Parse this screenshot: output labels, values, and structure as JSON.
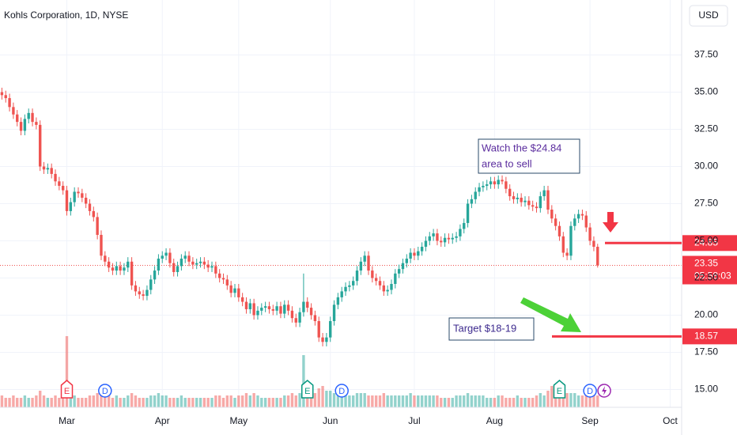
{
  "chart_data": {
    "type": "candlestick",
    "title": "Kohls Corporation, 1D, NYSE",
    "currency": "USD",
    "up_color": "#26a69a",
    "down_color": "#ef5350",
    "level_color": "#f23645",
    "grid": true,
    "open": [
      35.0,
      34.8,
      34.6,
      34.0,
      33.5,
      33.0,
      32.4,
      33.2,
      33.6,
      33.0,
      32.8,
      30.0,
      29.8,
      29.9,
      29.5,
      29.0,
      28.7,
      28.4,
      27.0,
      27.6,
      28.3,
      28.2,
      27.9,
      27.5,
      27.0,
      26.6,
      25.4,
      24.0,
      23.6,
      23.2,
      23.0,
      23.3,
      23.0,
      23.2,
      23.6,
      22.0,
      21.6,
      21.4,
      21.3,
      21.7,
      22.4,
      23.0,
      23.8,
      24.0,
      24.2,
      23.5,
      22.9,
      23.3,
      23.8,
      24.0,
      23.6,
      23.4,
      23.5,
      23.6,
      23.4,
      23.2,
      23.3,
      22.8,
      22.5,
      22.4,
      22.0,
      21.5,
      21.8,
      21.2,
      20.9,
      20.4,
      20.8,
      20.0,
      20.3,
      20.5,
      20.6,
      20.4,
      20.3,
      20.6,
      20.1,
      20.7,
      20.3,
      19.8,
      19.5,
      20.2,
      20.9,
      20.5,
      20.0,
      19.6,
      18.5,
      18.2,
      18.5,
      19.6,
      20.7,
      21.2,
      21.6,
      21.9,
      22.0,
      22.3,
      23.0,
      23.6,
      24.0,
      23.0,
      22.5,
      22.3,
      22.0,
      21.6,
      21.7,
      22.1,
      22.8,
      23.1,
      23.5,
      23.8,
      24.2,
      24.0,
      24.3,
      24.6,
      25.0,
      25.3,
      25.5,
      25.0,
      24.9,
      25.2,
      25.1,
      25.2,
      25.3,
      25.8,
      26.2,
      27.5,
      27.8,
      28.3,
      28.6,
      28.7,
      28.8,
      29.0,
      28.8,
      29.1,
      29.0,
      28.5,
      28.0,
      27.8,
      27.9,
      27.6,
      27.7,
      27.4,
      27.3,
      27.2,
      28.0,
      28.4,
      27.1,
      26.5,
      26.0,
      25.3,
      24.2,
      24.0,
      26.0,
      26.5,
      26.8,
      26.7,
      25.9,
      25.0,
      24.6
    ],
    "high": [
      35.3,
      35.1,
      34.9,
      34.3,
      33.8,
      33.3,
      33.5,
      33.9,
      33.9,
      33.3,
      33.1,
      30.3,
      30.2,
      30.2,
      29.8,
      29.3,
      29.0,
      28.7,
      27.9,
      28.6,
      28.6,
      28.5,
      28.2,
      27.8,
      27.3,
      26.9,
      25.7,
      24.3,
      23.9,
      23.5,
      23.6,
      23.6,
      23.5,
      23.9,
      23.9,
      22.3,
      21.9,
      21.7,
      22.0,
      22.7,
      23.3,
      24.1,
      24.3,
      24.5,
      24.5,
      23.8,
      23.6,
      24.1,
      24.3,
      24.3,
      23.9,
      23.8,
      23.9,
      23.9,
      23.7,
      23.6,
      23.6,
      23.1,
      22.8,
      22.7,
      22.3,
      22.1,
      22.1,
      21.5,
      21.2,
      21.1,
      21.1,
      20.6,
      20.8,
      20.9,
      20.9,
      20.7,
      20.9,
      20.9,
      21.0,
      21.0,
      20.6,
      20.1,
      20.5,
      22.8,
      21.2,
      20.8,
      20.3,
      19.9,
      18.8,
      18.8,
      19.9,
      21.0,
      21.5,
      21.9,
      22.2,
      22.3,
      22.6,
      23.3,
      23.9,
      24.3,
      24.3,
      23.3,
      22.8,
      22.6,
      22.3,
      22.0,
      22.4,
      23.1,
      23.4,
      23.8,
      24.1,
      24.5,
      24.5,
      24.6,
      24.9,
      25.3,
      25.6,
      25.8,
      25.8,
      25.3,
      25.5,
      25.5,
      25.5,
      25.6,
      26.1,
      26.5,
      27.8,
      28.1,
      28.6,
      28.9,
      29.0,
      29.1,
      29.3,
      29.3,
      29.4,
      29.4,
      29.3,
      28.8,
      28.3,
      28.2,
      28.2,
      28.0,
      28.0,
      27.7,
      27.6,
      28.3,
      28.7,
      28.7,
      27.4,
      26.8,
      26.3,
      25.6,
      24.5,
      26.3,
      26.8,
      27.1,
      27.1,
      27.0,
      26.2,
      25.3,
      24.8
    ],
    "low": [
      34.5,
      34.3,
      33.7,
      33.2,
      32.7,
      32.1,
      32.1,
      32.9,
      32.7,
      32.5,
      29.7,
      29.5,
      29.5,
      29.2,
      28.7,
      28.4,
      28.1,
      26.7,
      26.7,
      27.3,
      27.9,
      27.6,
      27.2,
      26.7,
      26.3,
      25.1,
      23.7,
      23.3,
      22.9,
      22.7,
      22.7,
      22.7,
      22.7,
      22.9,
      21.7,
      21.3,
      21.1,
      21.0,
      21.0,
      21.4,
      22.1,
      22.7,
      23.5,
      23.7,
      23.2,
      22.6,
      22.6,
      23.0,
      23.5,
      23.3,
      23.1,
      23.1,
      23.2,
      23.1,
      22.9,
      22.9,
      22.5,
      22.2,
      22.1,
      21.7,
      21.2,
      21.2,
      20.9,
      20.6,
      20.1,
      20.1,
      19.7,
      19.7,
      20.0,
      20.2,
      20.1,
      20.0,
      20.0,
      19.8,
      19.8,
      20.0,
      19.5,
      19.2,
      19.2,
      19.9,
      20.2,
      19.7,
      19.3,
      18.2,
      17.9,
      17.9,
      18.2,
      19.3,
      20.4,
      20.9,
      21.3,
      21.6,
      21.7,
      22.0,
      22.7,
      23.3,
      22.7,
      22.2,
      22.0,
      21.7,
      21.3,
      21.3,
      21.4,
      21.8,
      22.5,
      22.8,
      23.2,
      23.5,
      23.7,
      23.7,
      24.0,
      24.3,
      24.7,
      25.0,
      24.7,
      24.6,
      24.6,
      24.8,
      24.8,
      24.9,
      25.0,
      25.5,
      25.9,
      27.2,
      27.5,
      28.0,
      28.3,
      28.4,
      28.5,
      28.5,
      28.5,
      28.8,
      28.2,
      27.7,
      27.5,
      27.5,
      27.3,
      27.3,
      27.1,
      27.0,
      26.9,
      26.9,
      27.7,
      26.8,
      26.2,
      25.7,
      25.0,
      23.9,
      23.7,
      23.7,
      25.7,
      26.2,
      26.4,
      25.6,
      24.7,
      24.3,
      23.2
    ],
    "close": [
      34.8,
      34.6,
      34.0,
      33.5,
      33.0,
      32.4,
      33.2,
      33.6,
      33.0,
      32.8,
      30.0,
      29.8,
      29.9,
      29.5,
      29.0,
      28.7,
      28.4,
      27.0,
      27.6,
      28.3,
      28.2,
      27.9,
      27.5,
      27.0,
      26.6,
      25.4,
      24.0,
      23.6,
      23.2,
      23.0,
      23.3,
      23.0,
      23.2,
      23.6,
      22.0,
      21.6,
      21.4,
      21.3,
      21.7,
      22.4,
      23.0,
      23.8,
      24.0,
      24.2,
      23.5,
      22.9,
      23.3,
      23.8,
      24.0,
      23.6,
      23.4,
      23.5,
      23.6,
      23.4,
      23.2,
      23.3,
      22.8,
      22.5,
      22.4,
      22.0,
      21.5,
      21.8,
      21.2,
      20.9,
      20.4,
      20.8,
      20.0,
      20.3,
      20.5,
      20.6,
      20.4,
      20.3,
      20.6,
      20.1,
      20.7,
      20.3,
      19.8,
      19.5,
      20.2,
      20.9,
      20.5,
      20.0,
      19.6,
      18.5,
      18.2,
      18.5,
      19.6,
      20.7,
      21.2,
      21.6,
      21.9,
      22.0,
      22.3,
      23.0,
      23.6,
      24.0,
      23.0,
      22.5,
      22.3,
      22.0,
      21.6,
      21.7,
      22.1,
      22.8,
      23.1,
      23.5,
      23.8,
      24.2,
      24.0,
      24.3,
      24.6,
      25.0,
      25.3,
      25.5,
      25.0,
      24.9,
      25.2,
      25.1,
      25.2,
      25.3,
      25.8,
      26.2,
      27.5,
      27.8,
      28.3,
      28.6,
      28.7,
      28.8,
      29.0,
      28.8,
      29.1,
      29.0,
      28.5,
      28.0,
      27.8,
      27.9,
      27.6,
      27.7,
      27.4,
      27.3,
      27.2,
      28.0,
      28.4,
      27.1,
      26.5,
      26.0,
      25.3,
      24.2,
      24.0,
      26.0,
      26.5,
      26.8,
      26.7,
      25.9,
      25.0,
      24.6,
      23.35
    ],
    "volume": [
      5,
      4,
      4,
      5,
      4,
      4,
      5,
      4,
      4,
      5,
      7,
      5,
      4,
      4,
      5,
      4,
      5,
      30,
      6,
      5,
      4,
      4,
      4,
      5,
      5,
      6,
      6,
      5,
      5,
      4,
      5,
      4,
      4,
      5,
      6,
      5,
      4,
      4,
      4,
      5,
      5,
      6,
      5,
      5,
      4,
      4,
      4,
      5,
      4,
      4,
      4,
      4,
      4,
      4,
      4,
      4,
      5,
      5,
      4,
      5,
      5,
      4,
      5,
      5,
      6,
      5,
      6,
      5,
      4,
      4,
      4,
      4,
      4,
      4,
      5,
      5,
      6,
      5,
      6,
      22,
      8,
      6,
      6,
      8,
      9,
      7,
      7,
      6,
      5,
      5,
      5,
      5,
      5,
      6,
      6,
      6,
      5,
      5,
      5,
      5,
      6,
      5,
      5,
      5,
      5,
      5,
      5,
      6,
      5,
      5,
      5,
      5,
      5,
      5,
      5,
      4,
      4,
      4,
      4,
      5,
      5,
      5,
      6,
      5,
      5,
      5,
      5,
      4,
      4,
      4,
      5,
      5,
      4,
      4,
      4,
      5,
      4,
      4,
      4,
      4,
      5,
      6,
      5,
      7,
      9,
      8,
      8,
      10,
      6,
      6,
      6,
      5,
      5,
      6,
      7,
      6,
      5
    ],
    "xlim": [
      -0.5,
      178
    ],
    "xticks": [
      {
        "value": 17,
        "label": "Mar"
      },
      {
        "value": 42,
        "label": "Apr"
      },
      {
        "value": 62,
        "label": "May"
      },
      {
        "value": 86,
        "label": "Jun"
      },
      {
        "value": 108,
        "label": "Jul"
      },
      {
        "value": 129,
        "label": "Aug"
      },
      {
        "value": 154,
        "label": "Sep"
      },
      {
        "value": 175,
        "label": "Oct"
      }
    ],
    "ylim": [
      13.8,
      41.2
    ],
    "yticks": [
      {
        "value": 15,
        "label": "15.00"
      },
      {
        "value": 17.5,
        "label": "17.50"
      },
      {
        "value": 20,
        "label": "20.00"
      },
      {
        "value": 22.5,
        "label": "22.50"
      },
      {
        "value": 25,
        "label": "25.00"
      },
      {
        "value": 27.5,
        "label": "27.50"
      },
      {
        "value": 30,
        "label": "30.00"
      },
      {
        "value": 32.5,
        "label": "32.50"
      },
      {
        "value": 35,
        "label": "35.00"
      },
      {
        "value": 37.5,
        "label": "37.50"
      }
    ],
    "last_price": 23.35,
    "countdown": "05:58:03",
    "levels": [
      24.85,
      18.57
    ],
    "events": [
      {
        "label": "E",
        "index": 17
      },
      {
        "label": "D",
        "index": 27
      },
      {
        "label": "E",
        "index": 80
      },
      {
        "label": "D",
        "index": 89
      },
      {
        "label": "E",
        "index": 146
      },
      {
        "label": "D",
        "index": 154
      }
    ],
    "annotations": [
      {
        "lines": [
          "Watch the $24.84",
          "area to sell"
        ]
      },
      {
        "lines": [
          "Target $18-19"
        ]
      }
    ]
  }
}
